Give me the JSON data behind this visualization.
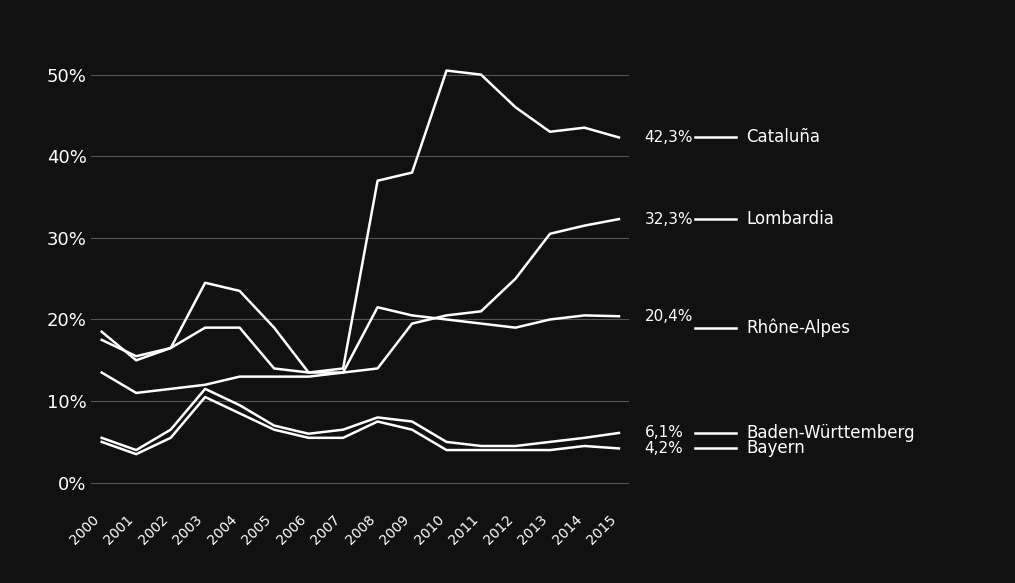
{
  "years": [
    2000,
    2001,
    2002,
    2003,
    2004,
    2005,
    2006,
    2007,
    2008,
    2009,
    2010,
    2011,
    2012,
    2013,
    2014,
    2015
  ],
  "cataluna": [
    18.5,
    15.0,
    16.5,
    24.5,
    23.5,
    19.0,
    13.5,
    14.0,
    37.0,
    38.0,
    50.5,
    50.0,
    46.0,
    43.0,
    43.5,
    42.3
  ],
  "lombardia": [
    13.5,
    11.0,
    11.5,
    12.0,
    13.0,
    13.0,
    13.0,
    13.5,
    14.0,
    19.5,
    20.5,
    21.0,
    25.0,
    30.5,
    31.5,
    32.3
  ],
  "rhone_alpes": [
    17.5,
    15.5,
    16.5,
    19.0,
    19.0,
    14.0,
    13.5,
    13.5,
    21.5,
    20.5,
    20.0,
    19.5,
    19.0,
    20.0,
    20.5,
    20.4
  ],
  "baden": [
    5.5,
    4.0,
    6.5,
    11.5,
    9.5,
    7.0,
    6.0,
    6.5,
    8.0,
    7.5,
    5.0,
    4.5,
    4.5,
    5.0,
    5.5,
    6.1
  ],
  "bayern": [
    5.0,
    3.5,
    5.5,
    10.5,
    8.5,
    6.5,
    5.5,
    5.5,
    7.5,
    6.5,
    4.0,
    4.0,
    4.0,
    4.0,
    4.5,
    4.2
  ],
  "legend_y_positions": {
    "cataluna": 42.3,
    "lombardia": 32.3,
    "rhone_alpes": 19.5,
    "baden": 6.1,
    "bayern": 4.2
  },
  "labels": {
    "cataluna": "Cataluña",
    "lombardia": "Lombardia",
    "rhone_alpes": "Rhône-Alpes",
    "baden": "Baden-Württemberg",
    "bayern": "Bayern"
  },
  "end_labels": {
    "cataluna": "42,3%",
    "lombardia": "32,3%",
    "rhone_alpes": "20,4%",
    "baden": "6,1%",
    "bayern": "4,2%"
  },
  "line_color": "#ffffff",
  "background_color": "#111111",
  "grid_color": "#555555",
  "text_color": "#ffffff",
  "yticks": [
    0,
    10,
    20,
    30,
    40,
    50
  ],
  "ylim": [
    -3,
    57
  ],
  "xlim": [
    1999.7,
    2015.3
  ]
}
